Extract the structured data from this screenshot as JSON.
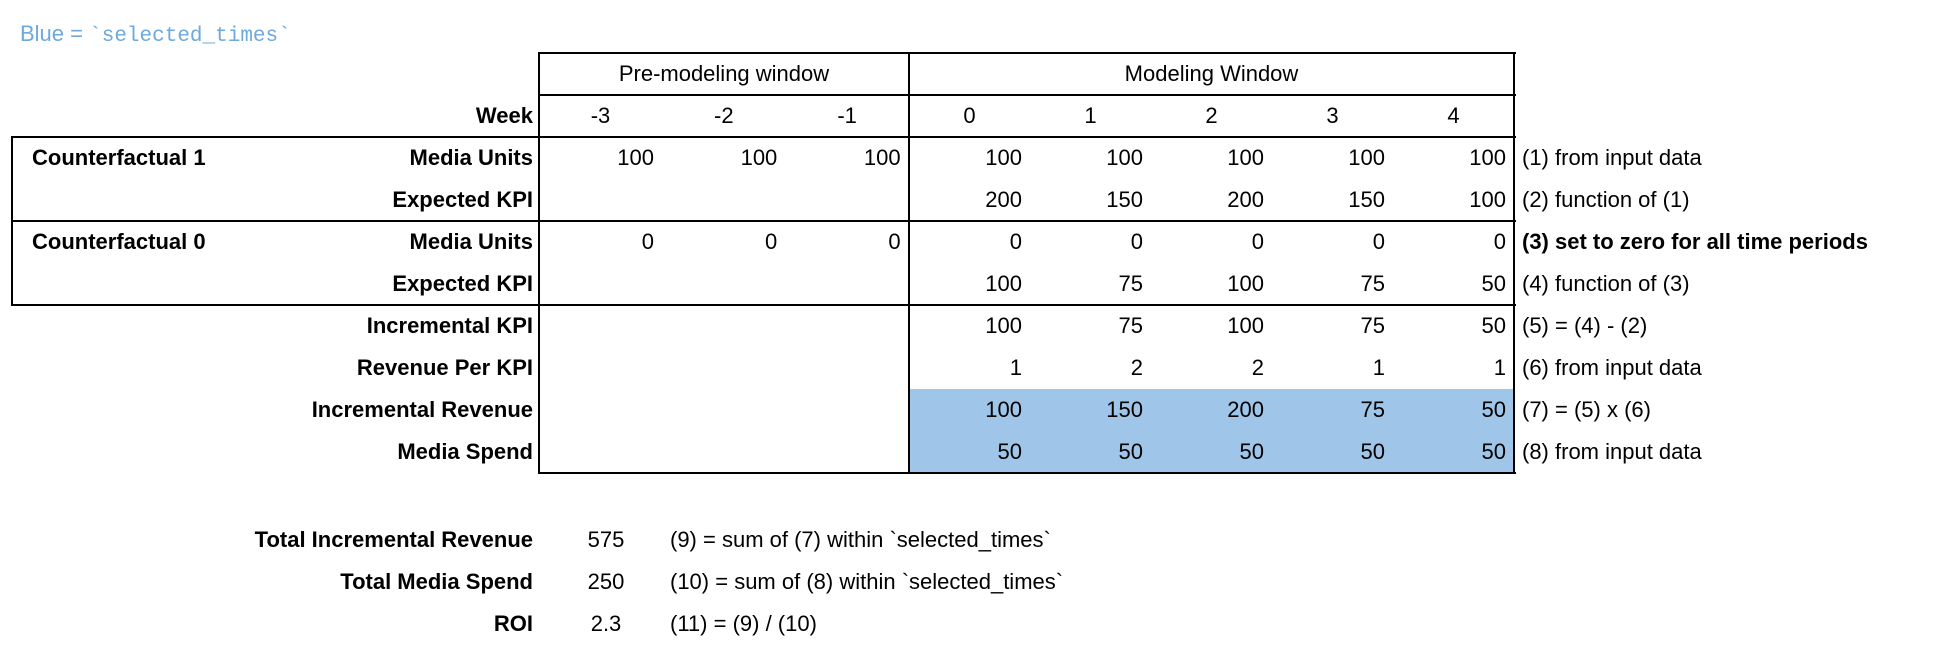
{
  "legend": {
    "prefix": "Blue = ",
    "code": "`selected_times`",
    "color": "#6fa8dc"
  },
  "highlight_color": "#9fc5e8",
  "header": {
    "pre_window": "Pre-modeling window",
    "modeling_window": "Modeling Window",
    "week_label": "Week",
    "pre_weeks": [
      "-3",
      "-2",
      "-1"
    ],
    "modeling_weeks": [
      "0",
      "1",
      "2",
      "3",
      "4"
    ]
  },
  "rows": [
    {
      "group": "Counterfactual 1",
      "label": "Media Units",
      "pre": [
        "100",
        "100",
        "100"
      ],
      "mod": [
        "100",
        "100",
        "100",
        "100",
        "100"
      ],
      "note": "(1) from input data",
      "note_bold": false,
      "highlight": false
    },
    {
      "group": "",
      "label": "Expected KPI",
      "pre": [
        "",
        "",
        ""
      ],
      "mod": [
        "200",
        "150",
        "200",
        "150",
        "100"
      ],
      "note": "(2) function of (1)",
      "note_bold": false,
      "highlight": false
    },
    {
      "group": "Counterfactual 0",
      "label": "Media Units",
      "pre": [
        "0",
        "0",
        "0"
      ],
      "mod": [
        "0",
        "0",
        "0",
        "0",
        "0"
      ],
      "note": "(3) set to zero for all time periods",
      "note_bold": true,
      "highlight": false
    },
    {
      "group": "",
      "label": "Expected KPI",
      "pre": [
        "",
        "",
        ""
      ],
      "mod": [
        "100",
        "75",
        "100",
        "75",
        "50"
      ],
      "note": "(4) function of (3)",
      "note_bold": false,
      "highlight": false
    },
    {
      "group": "",
      "label": "Incremental KPI",
      "pre": [
        "",
        "",
        ""
      ],
      "mod": [
        "100",
        "75",
        "100",
        "75",
        "50"
      ],
      "note": "(5) = (4) - (2)",
      "note_bold": false,
      "highlight": false
    },
    {
      "group": "",
      "label": "Revenue Per KPI",
      "pre": [
        "",
        "",
        ""
      ],
      "mod": [
        "1",
        "2",
        "2",
        "1",
        "1"
      ],
      "note": "(6) from input data",
      "note_bold": false,
      "highlight": false
    },
    {
      "group": "",
      "label": "Incremental Revenue",
      "pre": [
        "",
        "",
        ""
      ],
      "mod": [
        "100",
        "150",
        "200",
        "75",
        "50"
      ],
      "note": "(7) = (5) x (6)",
      "note_bold": false,
      "highlight": true
    },
    {
      "group": "",
      "label": "Media Spend",
      "pre": [
        "",
        "",
        ""
      ],
      "mod": [
        "50",
        "50",
        "50",
        "50",
        "50"
      ],
      "note": "(8) from input data",
      "note_bold": false,
      "highlight": true
    }
  ],
  "summary": [
    {
      "label": "Total Incremental Revenue",
      "value": "575",
      "formula": "(9) = sum of (7) within `selected_times`"
    },
    {
      "label": "Total Media Spend",
      "value": "250",
      "formula": "(10) = sum of (8) within `selected_times`"
    },
    {
      "label": "ROI",
      "value": "2.3",
      "formula": "(11) = (9) / (10)"
    }
  ]
}
